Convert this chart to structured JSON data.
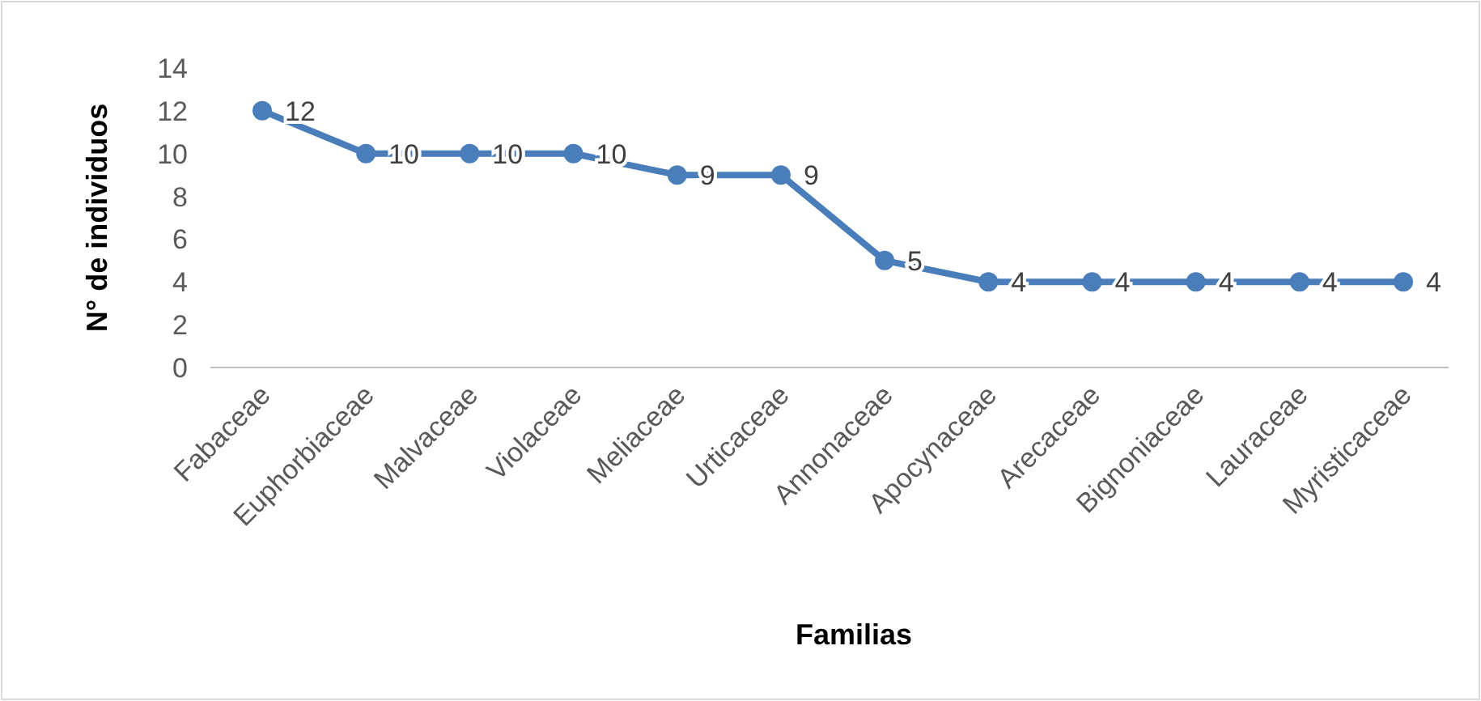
{
  "chart_data": {
    "type": "line",
    "xlabel": "Familias",
    "ylabel": "N° de individuos",
    "categories": [
      "Fabaceae",
      "Euphorbiaceae",
      "Malvaceae",
      "Violaceae",
      "Meliaceae",
      "Urticaceae",
      "Annonaceae",
      "Apocynaceae",
      "Arecaceae",
      "Bignoniaceae",
      "Lauraceae",
      "Myristicaceae"
    ],
    "series": [
      {
        "color": "#4a7ebb",
        "values": [
          12,
          10,
          10,
          10,
          9,
          9,
          5,
          4,
          4,
          4,
          4,
          4
        ]
      }
    ],
    "ylim": [
      0,
      14
    ],
    "yticks": [
      0,
      2,
      4,
      6,
      8,
      10,
      12,
      14
    ],
    "grid": false,
    "marker": "circle",
    "line_style": "solid",
    "data_labels": true
  }
}
